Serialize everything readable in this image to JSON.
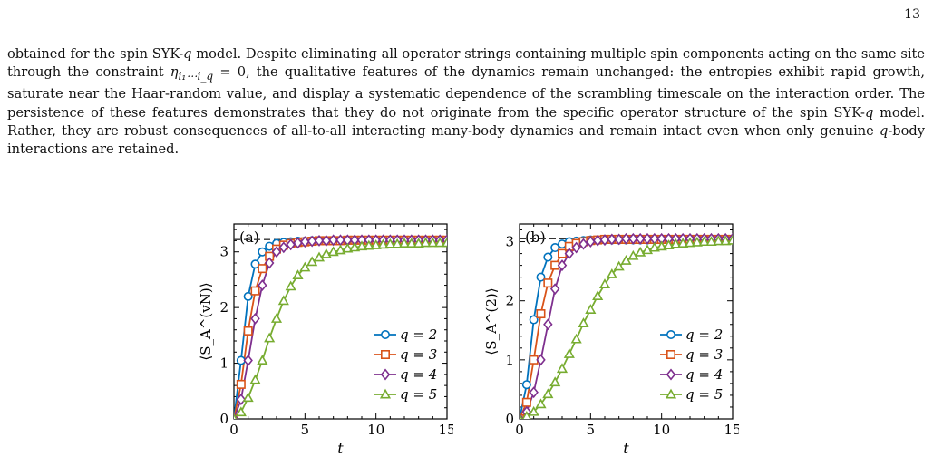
{
  "page_number": "13",
  "body_text": [
    "obtained for the spin SYK-",
    "q",
    " model. Despite eliminating all operator strings containing multiple spin components acting on the same site through the constraint ",
    "η",
    "i₁⋯i_q",
    " = 0, the qualitative features of the dynamics remain unchanged: the entropies exhibit rapid growth, saturate near the Haar-random value, and display a systematic dependence of the scrambling timescale on the interaction order. The persistence of these features demonstrates that they do not originate from the specific operator structure of the spin SYK-",
    "q",
    " model. Rather, they are robust consequences of all-to-all interacting many-body dynamics and remain intact even when only genuine ",
    "q",
    "-body interactions are retained."
  ],
  "colors": {
    "q2": "#0072BD",
    "q3": "#D95319",
    "q4": "#7E2F8E",
    "q5": "#77AC30",
    "haar_line": "#333333"
  },
  "chart_data": [
    {
      "type": "line",
      "panel_label": "(a)",
      "xlabel": "t",
      "ylabel": "⟨S_A^(vN)⟩",
      "xlim": [
        0,
        15
      ],
      "ylim": [
        0,
        3.5
      ],
      "xticks": [
        0,
        5,
        10,
        15
      ],
      "yticks": [
        0,
        1,
        2,
        3
      ],
      "haar_value": 3.22,
      "legend_position": "bottom-right",
      "series": [
        {
          "name": "q = 2",
          "marker": "circle",
          "color": "#0072BD",
          "x": [
            0,
            0.5,
            1,
            1.5,
            2,
            2.5,
            3,
            3.5,
            4,
            4.5,
            5,
            5.5,
            6,
            6.5,
            7,
            7.5,
            8,
            8.5,
            9,
            9.5,
            10,
            10.5,
            11,
            11.5,
            12,
            12.5,
            13,
            13.5,
            14,
            14.5,
            15
          ],
          "y": [
            0,
            1.05,
            2.2,
            2.78,
            3.0,
            3.1,
            3.15,
            3.17,
            3.18,
            3.19,
            3.19,
            3.2,
            3.2,
            3.2,
            3.2,
            3.2,
            3.2,
            3.2,
            3.2,
            3.2,
            3.2,
            3.2,
            3.2,
            3.2,
            3.2,
            3.2,
            3.2,
            3.2,
            3.2,
            3.2,
            3.2
          ]
        },
        {
          "name": "q = 3",
          "marker": "square",
          "color": "#D95319",
          "x": [
            0,
            0.5,
            1,
            1.5,
            2,
            2.5,
            3,
            3.5,
            4,
            4.5,
            5,
            5.5,
            6,
            6.5,
            7,
            7.5,
            8,
            8.5,
            9,
            9.5,
            10,
            10.5,
            11,
            11.5,
            12,
            12.5,
            13,
            13.5,
            14,
            14.5,
            15
          ],
          "y": [
            0,
            0.62,
            1.58,
            2.3,
            2.7,
            2.92,
            3.05,
            3.12,
            3.15,
            3.17,
            3.18,
            3.19,
            3.2,
            3.2,
            3.2,
            3.2,
            3.21,
            3.21,
            3.21,
            3.21,
            3.21,
            3.21,
            3.21,
            3.21,
            3.21,
            3.21,
            3.21,
            3.21,
            3.21,
            3.21,
            3.21
          ]
        },
        {
          "name": "q = 4",
          "marker": "diamond",
          "color": "#7E2F8E",
          "x": [
            0,
            0.5,
            1,
            1.5,
            2,
            2.5,
            3,
            3.5,
            4,
            4.5,
            5,
            5.5,
            6,
            6.5,
            7,
            7.5,
            8,
            8.5,
            9,
            9.5,
            10,
            10.5,
            11,
            11.5,
            12,
            12.5,
            13,
            13.5,
            14,
            14.5,
            15
          ],
          "y": [
            0,
            0.35,
            1.05,
            1.8,
            2.4,
            2.8,
            3.0,
            3.08,
            3.13,
            3.16,
            3.18,
            3.19,
            3.2,
            3.2,
            3.21,
            3.21,
            3.21,
            3.21,
            3.21,
            3.21,
            3.21,
            3.21,
            3.21,
            3.21,
            3.21,
            3.21,
            3.21,
            3.21,
            3.21,
            3.21,
            3.21
          ]
        },
        {
          "name": "q = 5",
          "marker": "triangle",
          "color": "#77AC30",
          "x": [
            0,
            0.5,
            1,
            1.5,
            2,
            2.5,
            3,
            3.5,
            4,
            4.5,
            5,
            5.5,
            6,
            6.5,
            7,
            7.5,
            8,
            8.5,
            9,
            9.5,
            10,
            10.5,
            11,
            11.5,
            12,
            12.5,
            13,
            13.5,
            14,
            14.5,
            15
          ],
          "y": [
            0,
            0.12,
            0.38,
            0.7,
            1.05,
            1.45,
            1.8,
            2.12,
            2.38,
            2.58,
            2.72,
            2.82,
            2.9,
            2.96,
            3.0,
            3.03,
            3.06,
            3.08,
            3.1,
            3.11,
            3.12,
            3.13,
            3.14,
            3.14,
            3.15,
            3.15,
            3.15,
            3.16,
            3.16,
            3.16,
            3.16
          ]
        }
      ]
    },
    {
      "type": "line",
      "panel_label": "(b)",
      "xlabel": "t",
      "ylabel": "⟨S_A^(2)⟩",
      "xlim": [
        0,
        15
      ],
      "ylim": [
        0,
        3.3
      ],
      "xticks": [
        0,
        5,
        10,
        15
      ],
      "yticks": [
        0,
        1,
        2,
        3
      ],
      "haar_value": 3.05,
      "legend_position": "bottom-right",
      "series": [
        {
          "name": "q = 2",
          "marker": "circle",
          "color": "#0072BD",
          "x": [
            0,
            0.5,
            1,
            1.5,
            2,
            2.5,
            3,
            3.5,
            4,
            4.5,
            5,
            5.5,
            6,
            6.5,
            7,
            7.5,
            8,
            8.5,
            9,
            9.5,
            10,
            10.5,
            11,
            11.5,
            12,
            12.5,
            13,
            13.5,
            14,
            14.5,
            15
          ],
          "y": [
            0,
            0.58,
            1.68,
            2.4,
            2.74,
            2.9,
            2.96,
            3.0,
            3.01,
            3.02,
            3.03,
            3.03,
            3.03,
            3.03,
            3.03,
            3.03,
            3.03,
            3.03,
            3.03,
            3.03,
            3.03,
            3.03,
            3.03,
            3.03,
            3.03,
            3.03,
            3.03,
            3.03,
            3.03,
            3.03,
            3.03
          ]
        },
        {
          "name": "q = 3",
          "marker": "square",
          "color": "#D95319",
          "x": [
            0,
            0.5,
            1,
            1.5,
            2,
            2.5,
            3,
            3.5,
            4,
            4.5,
            5,
            5.5,
            6,
            6.5,
            7,
            7.5,
            8,
            8.5,
            9,
            9.5,
            10,
            10.5,
            11,
            11.5,
            12,
            12.5,
            13,
            13.5,
            14,
            14.5,
            15
          ],
          "y": [
            0,
            0.28,
            1.0,
            1.78,
            2.3,
            2.6,
            2.8,
            2.92,
            2.97,
            3.0,
            3.02,
            3.03,
            3.04,
            3.04,
            3.04,
            3.04,
            3.04,
            3.04,
            3.04,
            3.04,
            3.04,
            3.04,
            3.04,
            3.04,
            3.04,
            3.04,
            3.04,
            3.04,
            3.04,
            3.04,
            3.04
          ]
        },
        {
          "name": "q = 4",
          "marker": "diamond",
          "color": "#7E2F8E",
          "x": [
            0,
            0.5,
            1,
            1.5,
            2,
            2.5,
            3,
            3.5,
            4,
            4.5,
            5,
            5.5,
            6,
            6.5,
            7,
            7.5,
            8,
            8.5,
            9,
            9.5,
            10,
            10.5,
            11,
            11.5,
            12,
            12.5,
            13,
            13.5,
            14,
            14.5,
            15
          ],
          "y": [
            0,
            0.12,
            0.45,
            1.0,
            1.6,
            2.2,
            2.6,
            2.8,
            2.9,
            2.96,
            3.0,
            3.02,
            3.03,
            3.04,
            3.04,
            3.05,
            3.05,
            3.05,
            3.05,
            3.05,
            3.05,
            3.05,
            3.05,
            3.05,
            3.05,
            3.05,
            3.05,
            3.05,
            3.05,
            3.05,
            3.05
          ]
        },
        {
          "name": "q = 5",
          "marker": "triangle",
          "color": "#77AC30",
          "x": [
            0,
            0.5,
            1,
            1.5,
            2,
            2.5,
            3,
            3.5,
            4,
            4.5,
            5,
            5.5,
            6,
            6.5,
            7,
            7.5,
            8,
            8.5,
            9,
            9.5,
            10,
            10.5,
            11,
            11.5,
            12,
            12.5,
            13,
            13.5,
            14,
            14.5,
            15
          ],
          "y": [
            0,
            0.04,
            0.12,
            0.25,
            0.42,
            0.62,
            0.85,
            1.1,
            1.35,
            1.62,
            1.85,
            2.08,
            2.28,
            2.45,
            2.58,
            2.68,
            2.76,
            2.82,
            2.86,
            2.9,
            2.92,
            2.94,
            2.96,
            2.97,
            2.98,
            2.99,
            3.0,
            3.0,
            3.01,
            3.01,
            3.02
          ]
        }
      ]
    }
  ]
}
